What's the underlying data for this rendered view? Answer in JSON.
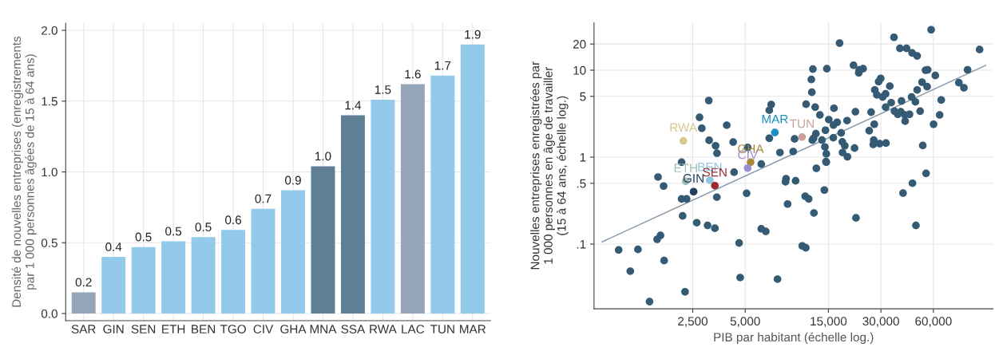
{
  "chart_data": [
    {
      "type": "bar",
      "ylabel": "Densité de nouvelles entreprises (enregistrements\npar 1 000 personnes âgées de 15 à 64 ans)",
      "categories": [
        "SAR",
        "GIN",
        "SEN",
        "ETH",
        "BEN",
        "TGO",
        "CIV",
        "GHA",
        "MNA",
        "SSA",
        "RWA",
        "LAC",
        "TUN",
        "MAR"
      ],
      "values": [
        0.15,
        0.4,
        0.47,
        0.51,
        0.54,
        0.59,
        0.74,
        0.87,
        1.04,
        1.4,
        1.51,
        1.62,
        1.68,
        1.9
      ],
      "colors": [
        "#94a6b8",
        "#93c9ea",
        "#93c9ea",
        "#93c9ea",
        "#93c9ea",
        "#93c9ea",
        "#93c9ea",
        "#93c9ea",
        "#5f7f96",
        "#5f7f96",
        "#93c9ea",
        "#94a6b8",
        "#93c9ea",
        "#93c9ea"
      ],
      "value_labels": [
        "0.2",
        "0.4",
        "0.5",
        "0.5",
        "0.5",
        "0.6",
        "0.7",
        "0.9",
        "1.0",
        "1.4",
        "1.5",
        "1.6",
        "1.7",
        "1.9"
      ],
      "ylim": [
        -0.05,
        2.05
      ],
      "yticks": [
        {
          "value": 0,
          "label": "0.0"
        },
        {
          "value": 0.5,
          "label": "0.5"
        },
        {
          "value": 1,
          "label": "1.0"
        },
        {
          "value": 1.5,
          "label": "1.5"
        },
        {
          "value": 2,
          "label": "2.0"
        }
      ],
      "grid": true
    },
    {
      "type": "scatter",
      "xlabel": "PIB par habitant (échelle log.)",
      "ylabel": "Nouvelles entreprises enregistrées par\n1 000 personnes en âge de travailler\n(15 à 64 ans, échelle log.)",
      "log": "xy",
      "xlim": [
        679,
        131800
      ],
      "ylim": [
        0.018,
        35.3
      ],
      "xticks": [
        {
          "value": 2500,
          "label": "2,500"
        },
        {
          "value": 5000,
          "label": "5,000"
        },
        {
          "value": 15000,
          "label": "15,000"
        },
        {
          "value": 30000,
          "label": "30,000"
        },
        {
          "value": 60000,
          "label": "60,000"
        }
      ],
      "yticks": [
        {
          "value": 0.1,
          "label": ".1"
        },
        {
          "value": 0.5,
          "label": ".5"
        },
        1,
        5,
        10,
        20
      ],
      "grid": true,
      "marker": "circle",
      "series": [
        {
          "color": "#345a74",
          "x": [
            3090,
            2735,
            2818,
            3917,
            3105,
            3381,
            3444,
            4266,
            5164,
            6180,
            2158,
            1581,
            4315,
            1702,
            2158,
            2307,
            3436,
            2188,
            2636,
            3041,
            3350,
            1563,
            1633,
            940,
            1213,
            1714,
            1096,
            2259,
            1413,
            4613,
            4677,
            5093,
            6180,
            6561,
            14590,
            12790,
            8570,
            8511,
            9727,
            8750,
            14220,
            11040,
            11560,
            12390,
            10620,
            11120,
            7656,
            21580,
            40180,
            45500,
            54450,
            47640,
            7047,
            6871,
            6871,
            7907,
            9419,
            9594,
            11170,
            12590,
            13400,
            12220,
            14690,
            11970,
            12050,
            17380,
            20890,
            22540,
            23710,
            22390,
            35650,
            58210,
            38550,
            42070,
            45290,
            48420,
            110400,
            54080,
            55590,
            61520,
            94190,
            83950,
            89740,
            29920,
            29110,
            33730,
            27670,
            28440,
            31920,
            30690,
            51640,
            48420,
            55210,
            34360,
            31920,
            39360,
            44980,
            47300,
            66530,
            35890,
            38990,
            37500,
            41110,
            43750,
            41300,
            50350,
            65160,
            60120,
            26360,
            21430,
            16140,
            15070,
            19190,
            16030,
            16830,
            27480,
            25700,
            14420,
            17750,
            12710,
            12330,
            12130,
            13770,
            16000,
            14320,
            18030,
            18620,
            21180,
            27290,
            27100,
            29510,
            32060,
            14590,
            18070,
            19280,
            14520,
            52120
          ],
          "values": [
            4.48,
            2.87,
            2.15,
            2.33,
            1.56,
            1.35,
            1.11,
            1.49,
            1.29,
            0.832,
            0.875,
            0.59,
            0.67,
            0.465,
            0.331,
            0.331,
            0.346,
            0.211,
            0.176,
            0.164,
            0.152,
            0.1135,
            0.126,
            0.0857,
            0.0868,
            0.0646,
            0.0488,
            0.0283,
            0.0218,
            0.103,
            0.0412,
            0.384,
            0.15,
            0.14,
            0.875,
            0.744,
            0.565,
            0.52,
            0.534,
            0.289,
            0.418,
            0.355,
            0.331,
            0.228,
            0.0953,
            0.0906,
            0.0395,
            0.2,
            0.386,
            0.501,
            0.651,
            0.164,
            4.03,
            3.46,
            1.65,
            1.13,
            1.16,
            1.62,
            4.06,
            3.76,
            3.06,
            10.3,
            10.4,
            7.81,
            5.57,
            20.5,
            11.4,
            10.1,
            10.4,
            9.33,
            23.9,
            29.2,
            17.8,
            17.8,
            15.8,
            14.6,
            17.3,
            10.0,
            10.1,
            8.68,
            10.1,
            7.18,
            6.28,
            8.05,
            7.39,
            6.56,
            5.93,
            5.2,
            5.34,
            4.91,
            7.28,
            5.93,
            6.46,
            4.23,
            3.76,
            4.42,
            4.91,
            4.32,
            4.55,
            3.38,
            3.33,
            3.11,
            3.06,
            3.11,
            2.59,
            3.38,
            3.06,
            2.39,
            3.29,
            3.33,
            3.65,
            2.7,
            2.63,
            2.34,
            2.52,
            2.39,
            2.01,
            2.04,
            1.9,
            1.86,
            1.65,
            1.57,
            1.57,
            1.67,
            1.31,
            1.5,
            1.35,
            1.27,
            1.57,
            1.4,
            1.43,
            1.45,
            1.09,
            1.13,
            1.01,
            0.887,
            1.36
          ]
        },
        {
          "type": "line",
          "color": "#8a9aab",
          "marker": "none",
          "x": [
            755,
            119700
          ],
          "values": [
            0.106,
            11.35
          ]
        },
        {
          "name": "RWA",
          "color": "#d8c98f",
          "x": [
            2208
          ],
          "values": [
            1.54
          ]
        },
        {
          "name": "MAR",
          "color": "#1a8fc1",
          "x": [
            7396
          ],
          "values": [
            1.92
          ]
        },
        {
          "name": "TUN",
          "color": "#c9a39b",
          "x": [
            10590
          ],
          "values": [
            1.7
          ]
        },
        {
          "name": "GHA",
          "color": "#a68a3a",
          "x": [
            5370
          ],
          "values": [
            0.875
          ]
        },
        {
          "name": "CIV",
          "color": "#9c8fd6",
          "x": [
            5164
          ],
          "values": [
            0.748
          ]
        },
        {
          "name": "ETH",
          "color": "#9fbfb5",
          "x": [
            2280
          ],
          "values": [
            0.527
          ]
        },
        {
          "name": "BEN",
          "color": "#8ec4e0",
          "x": [
            3133
          ],
          "values": [
            0.542
          ]
        },
        {
          "name": "SEN",
          "color": "#9c2a2e",
          "x": [
            3350
          ],
          "values": [
            0.47
          ]
        },
        {
          "name": "GIN",
          "color": "#1f3f60",
          "x": [
            2529
          ],
          "values": [
            0.401
          ]
        }
      ]
    }
  ]
}
